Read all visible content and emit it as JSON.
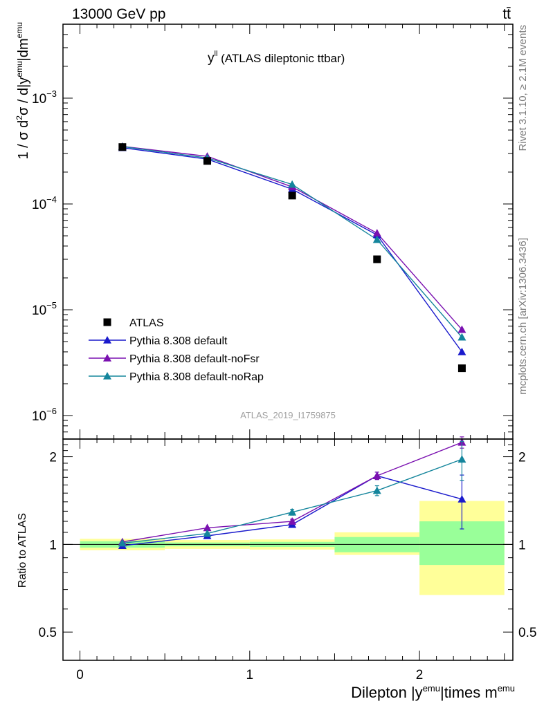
{
  "header": {
    "left": "13000 GeV pp",
    "right": "tt̄"
  },
  "title": {
    "main": "y",
    "sup": "ll",
    "rest": " (ATLAS dileptonic ttbar)"
  },
  "side_labels": {
    "rivet": "Rivet 3.1.10, ≥ 2.1M events",
    "mcplots": "mcplots.cern.ch [arXiv:1306.3436]"
  },
  "watermark": "ATLAS_2019_I1759875",
  "axes": {
    "main_ylabel": "1 / σ d²σ / d|y^emu|dm^emu",
    "ratio_ylabel": "Ratio to ATLAS",
    "xlabel": "Dilepton |y^emu|times m^emu"
  },
  "legend": [
    {
      "label": "ATLAS",
      "color": "#000000",
      "marker": "square"
    },
    {
      "label": "Pythia 8.308 default",
      "color": "#1a1acc",
      "marker": "triangle"
    },
    {
      "label": "Pythia 8.308 default-noFsr",
      "color": "#7a10b0",
      "marker": "triangle"
    },
    {
      "label": "Pythia 8.308 default-noRap",
      "color": "#14859c",
      "marker": "triangle"
    }
  ],
  "chart_data": {
    "type": "line",
    "x_ticks": [
      "0",
      "1",
      "2"
    ],
    "main_y_ticks": [
      "10^-6",
      "10^-5",
      "10^-4",
      "10^-3"
    ],
    "ratio_y_ticks": [
      "0.5",
      "1",
      "2"
    ],
    "xlim": [
      -0.1,
      2.55
    ],
    "main_ylim": [
      6e-07,
      0.005
    ],
    "main_yscale": "log",
    "ratio_ylim": [
      0.4,
      2.3
    ],
    "ratio_yscale": "log",
    "legend_placement": "bottom-left",
    "bins": [
      [
        0,
        0.5
      ],
      [
        0.5,
        1.0
      ],
      [
        1.0,
        1.5
      ],
      [
        1.5,
        2.0
      ],
      [
        2.0,
        2.5
      ]
    ],
    "x": [
      0.25,
      0.75,
      1.25,
      1.75,
      2.25
    ],
    "data": {
      "name": "ATLAS",
      "values": [
        0.000345,
        0.000255,
        0.00012,
        3e-05,
        2.8e-06
      ]
    },
    "data_band_inner": [
      [
        0.975,
        1.025
      ],
      [
        0.985,
        1.015
      ],
      [
        0.98,
        1.02
      ],
      [
        0.94,
        1.06
      ],
      [
        0.85,
        1.2
      ]
    ],
    "data_band_outer": [
      [
        0.955,
        1.045
      ],
      [
        0.965,
        1.035
      ],
      [
        0.96,
        1.04
      ],
      [
        0.92,
        1.1
      ],
      [
        0.67,
        1.41
      ]
    ],
    "series": [
      {
        "name": "Pythia 8.308 default",
        "color": "#1a1acc",
        "values": [
          0.00034,
          0.000265,
          0.000138,
          5.1e-05,
          4e-06
        ],
        "ratio": [
          0.99,
          1.07,
          1.17,
          1.72,
          1.43
        ],
        "ratio_err": [
          0.01,
          0.01,
          0.02,
          0.05,
          0.3
        ]
      },
      {
        "name": "Pythia 8.308 default-noFsr",
        "color": "#7a10b0",
        "values": [
          0.00035,
          0.000282,
          0.000145,
          5.3e-05,
          6.5e-06
        ],
        "ratio": [
          1.02,
          1.14,
          1.2,
          1.72,
          2.24
        ],
        "ratio_err": [
          0.01,
          0.01,
          0.02,
          0.05,
          0.1
        ]
      },
      {
        "name": "Pythia 8.308 default-noRap",
        "color": "#14859c",
        "values": [
          0.000348,
          0.000272,
          0.000153,
          4.6e-05,
          5.5e-06
        ],
        "ratio": [
          1.01,
          1.09,
          1.29,
          1.53,
          1.96
        ],
        "ratio_err": [
          0.01,
          0.01,
          0.03,
          0.06,
          0.3
        ]
      }
    ]
  }
}
